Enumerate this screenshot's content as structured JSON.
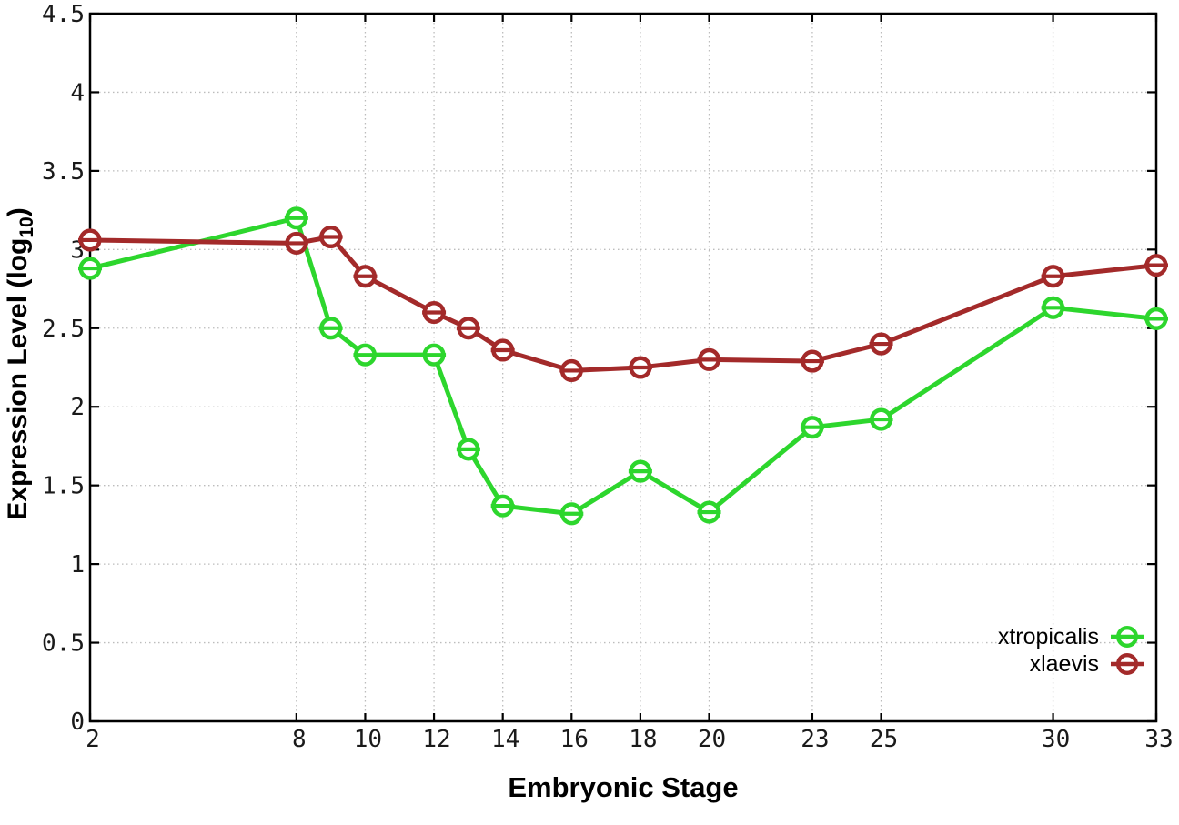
{
  "chart_data": {
    "type": "line",
    "title": "",
    "xlabel": "Embryonic Stage",
    "ylabel": "Expression Level (log10)",
    "ylabel_parts": {
      "pre": "Expression Level (log",
      "sub": "10",
      "post": ")"
    },
    "x": [
      2,
      8,
      9,
      10,
      12,
      13,
      14,
      16,
      18,
      20,
      23,
      25,
      30,
      33
    ],
    "series": [
      {
        "name": "xtropicalis",
        "color": "#2dd62d",
        "values": [
          2.88,
          3.2,
          2.5,
          2.33,
          2.33,
          1.73,
          1.37,
          1.32,
          1.59,
          1.33,
          1.87,
          1.92,
          2.63,
          2.56
        ]
      },
      {
        "name": "xlaevis",
        "color": "#a32a2a",
        "values": [
          3.06,
          3.04,
          3.08,
          2.83,
          2.6,
          2.5,
          2.36,
          2.23,
          2.25,
          2.3,
          2.29,
          2.4,
          2.83,
          2.9
        ]
      }
    ],
    "xticks": [
      2,
      8,
      10,
      12,
      14,
      16,
      18,
      20,
      23,
      25,
      30,
      33
    ],
    "yticks": [
      0,
      0.5,
      1,
      1.5,
      2,
      2.5,
      3,
      3.5,
      4,
      4.5
    ],
    "xlim": [
      2,
      33
    ],
    "ylim": [
      0,
      4.5
    ],
    "grid": true,
    "grid_style": "dotted",
    "gridline_color": "#bcbcbc",
    "axis_color": "#000000",
    "tick_label_color": "#1a1a1a",
    "legend_position": "bottom-right",
    "marker": "open-circle-with-horizontal-dash",
    "line_width": 5
  }
}
